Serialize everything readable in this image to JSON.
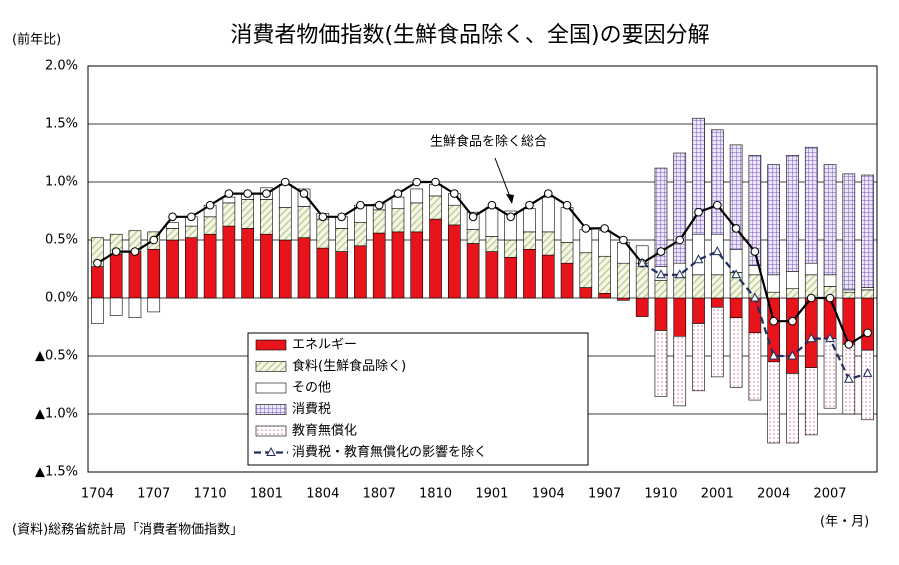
{
  "chart_data": {
    "type": "bar",
    "title": "消費者物価指数(生鮮食品除く、全国)の要因分解",
    "y_axis_label": "(前年比)",
    "x_axis_label": "(年・月)",
    "source": "(資料)総務省統計局「消費者物価指数」",
    "annotation": "生鮮食品を除く総合",
    "stacked": true,
    "categories": [
      "1704",
      null,
      null,
      "1707",
      null,
      null,
      "1710",
      null,
      null,
      "1801",
      null,
      null,
      "1804",
      null,
      null,
      "1807",
      null,
      null,
      "1810",
      null,
      null,
      "1901",
      null,
      null,
      "1904",
      null,
      null,
      "1907",
      null,
      null,
      "1910",
      null,
      null,
      "2001",
      null,
      null,
      "2004",
      null,
      null,
      "2007",
      null,
      null
    ],
    "series": [
      {
        "name": "エネルギー",
        "color": "#e8141c",
        "pattern": "solid",
        "values": [
          0.27,
          0.38,
          0.4,
          0.42,
          0.5,
          0.52,
          0.55,
          0.62,
          0.6,
          0.55,
          0.5,
          0.52,
          0.43,
          0.4,
          0.45,
          0.56,
          0.57,
          0.57,
          0.68,
          0.63,
          0.47,
          0.4,
          0.35,
          0.42,
          0.37,
          0.3,
          0.09,
          0.04,
          -0.02,
          -0.16,
          -0.28,
          -0.33,
          -0.22,
          -0.08,
          -0.17,
          -0.3,
          -0.55,
          -0.65,
          -0.6,
          -0.35,
          -0.4,
          -0.45
        ]
      },
      {
        "name": "食料(生鮮食品除く)",
        "color": "#b8c98a",
        "pattern": "hatch",
        "values": [
          0.25,
          0.17,
          0.18,
          0.15,
          0.1,
          0.1,
          0.15,
          0.2,
          0.25,
          0.3,
          0.28,
          0.27,
          0.25,
          0.2,
          0.2,
          0.2,
          0.2,
          0.25,
          0.2,
          0.17,
          0.12,
          0.13,
          0.15,
          0.15,
          0.2,
          0.18,
          0.3,
          0.32,
          0.3,
          0.3,
          0.15,
          0.18,
          0.2,
          0.2,
          0.22,
          0.2,
          0.05,
          0.08,
          0.2,
          0.1,
          0.05,
          0.07
        ]
      },
      {
        "name": "その他",
        "color": "#ffffff",
        "pattern": "solid",
        "values": [
          -0.22,
          -0.15,
          -0.17,
          -0.12,
          0.05,
          0.08,
          0.1,
          0.05,
          0.05,
          0.1,
          0.2,
          0.15,
          0.05,
          0.1,
          0.15,
          0.05,
          0.1,
          0.12,
          0.1,
          0.1,
          0.15,
          0.25,
          0.25,
          0.2,
          0.3,
          0.3,
          0.2,
          0.22,
          0.18,
          0.15,
          0.12,
          0.12,
          0.35,
          0.35,
          0.2,
          0.08,
          0.15,
          0.15,
          0.1,
          0.1,
          0.02,
          0.02
        ]
      },
      {
        "name": "消費税",
        "color": "#7a5cc0",
        "pattern": "grid",
        "values": [
          null,
          null,
          null,
          null,
          null,
          null,
          null,
          null,
          null,
          null,
          null,
          null,
          null,
          null,
          null,
          null,
          null,
          null,
          null,
          null,
          null,
          null,
          null,
          null,
          null,
          null,
          null,
          null,
          null,
          null,
          0.85,
          0.95,
          1.0,
          0.9,
          0.9,
          0.95,
          0.95,
          1.0,
          1.0,
          0.95,
          1.0,
          0.97
        ]
      },
      {
        "name": "教育無償化",
        "color": "#e07a9a",
        "pattern": "dots",
        "values": [
          null,
          null,
          null,
          null,
          null,
          null,
          null,
          null,
          null,
          null,
          null,
          null,
          null,
          null,
          null,
          null,
          null,
          null,
          null,
          null,
          null,
          null,
          null,
          null,
          null,
          null,
          null,
          null,
          null,
          null,
          -0.57,
          -0.6,
          -0.58,
          -0.6,
          -0.6,
          -0.58,
          -0.7,
          -0.6,
          -0.58,
          -0.6,
          -0.6,
          -0.6
        ]
      }
    ],
    "lines": [
      {
        "name": "生鮮食品を除く総合",
        "color": "#000000",
        "marker": "circle",
        "values": [
          0.3,
          0.4,
          0.4,
          0.5,
          0.7,
          0.7,
          0.8,
          0.9,
          0.9,
          0.9,
          1.0,
          0.9,
          0.7,
          0.7,
          0.8,
          0.8,
          0.9,
          1.0,
          1.0,
          0.9,
          0.7,
          0.8,
          0.7,
          0.8,
          0.9,
          0.8,
          0.6,
          0.6,
          0.5,
          0.3,
          0.4,
          0.5,
          0.74,
          0.8,
          0.6,
          0.4,
          -0.2,
          -0.2,
          0.0,
          0.0,
          -0.4,
          -0.3
        ]
      },
      {
        "name": "消費税・教育無償化の影響を除く",
        "color": "#1f2f5f",
        "marker": "triangle",
        "dashed": true,
        "values": [
          null,
          null,
          null,
          null,
          null,
          null,
          null,
          null,
          null,
          null,
          null,
          null,
          null,
          null,
          null,
          null,
          null,
          null,
          null,
          null,
          null,
          null,
          null,
          null,
          null,
          null,
          null,
          null,
          null,
          0.3,
          0.2,
          0.2,
          0.33,
          0.4,
          0.2,
          0.0,
          -0.5,
          -0.5,
          -0.35,
          -0.35,
          -0.7,
          -0.65
        ]
      }
    ],
    "ylim": [
      -1.5,
      2.0
    ],
    "yticks": [
      {
        "value": -1.5,
        "label": "▲1.5%"
      },
      {
        "value": -1.0,
        "label": "▲1.0%"
      },
      {
        "value": -0.5,
        "label": "▲0.5%"
      },
      {
        "value": 0.0,
        "label": "0.0%"
      },
      {
        "value": 0.5,
        "label": "0.5%"
      },
      {
        "value": 1.0,
        "label": "1.0%"
      },
      {
        "value": 1.5,
        "label": "1.5%"
      },
      {
        "value": 2.0,
        "label": "2.0%"
      }
    ],
    "grid": true
  }
}
